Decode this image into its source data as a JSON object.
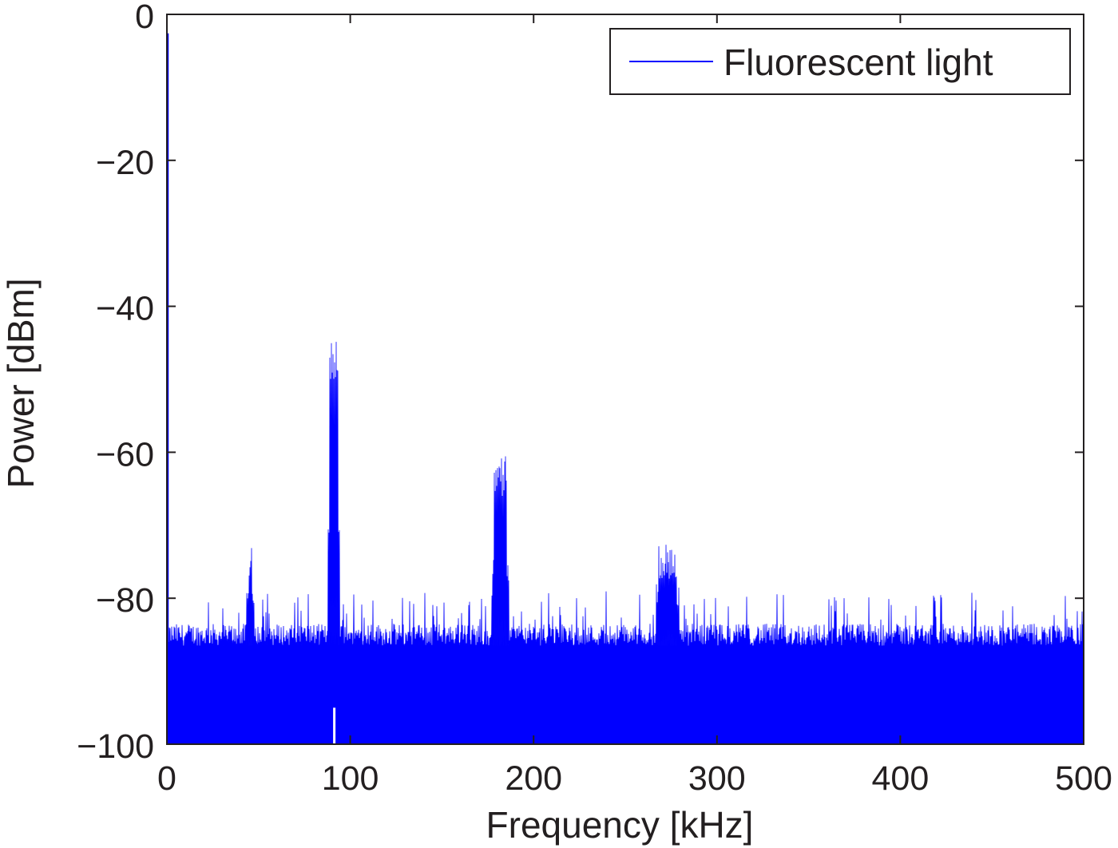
{
  "chart_data": {
    "type": "line",
    "title": "",
    "xlabel": "Frequency [kHz]",
    "ylabel": "Power [dBm]",
    "xlim": [
      0,
      500
    ],
    "ylim": [
      -100,
      0
    ],
    "xticks": [
      0,
      100,
      200,
      300,
      400,
      500
    ],
    "yticks": [
      0,
      -20,
      -40,
      -60,
      -80,
      -100
    ],
    "xtick_labels": [
      "0",
      "100",
      "200",
      "300",
      "400",
      "500"
    ],
    "ytick_labels": [
      "0",
      "−20",
      "−40",
      "−60",
      "−80",
      "−100"
    ],
    "grid": false,
    "legend_position": "upper right",
    "series": [
      {
        "name": "Fluorescent light",
        "color": "#0000FF",
        "noise_floor": {
          "typical_top_dBm": -85,
          "max_spike_dBm": -80,
          "fill_bottom_dBm": -100
        },
        "dc_component": {
          "x_kHz": 0,
          "y_dBm": -2.6
        },
        "peaks": [
          {
            "x_kHz": 45.5,
            "y_dBm": -71.0,
            "width_kHz": 2
          },
          {
            "x_kHz": 91,
            "y_dBm": -44.4,
            "width_kHz": 4.5
          },
          {
            "x_kHz": 182,
            "y_dBm": -60.2,
            "width_kHz": 7
          },
          {
            "x_kHz": 273,
            "y_dBm": -71.9,
            "width_kHz": 10
          }
        ],
        "notch": {
          "x_kHz": 91.3,
          "y_dBm": -95
        }
      }
    ]
  },
  "legend": {
    "entries": [
      {
        "label": "Fluorescent light",
        "color": "#0000FF"
      }
    ]
  },
  "axes": {
    "xlabel": "Frequency [kHz]",
    "ylabel": "Power [dBm]"
  }
}
